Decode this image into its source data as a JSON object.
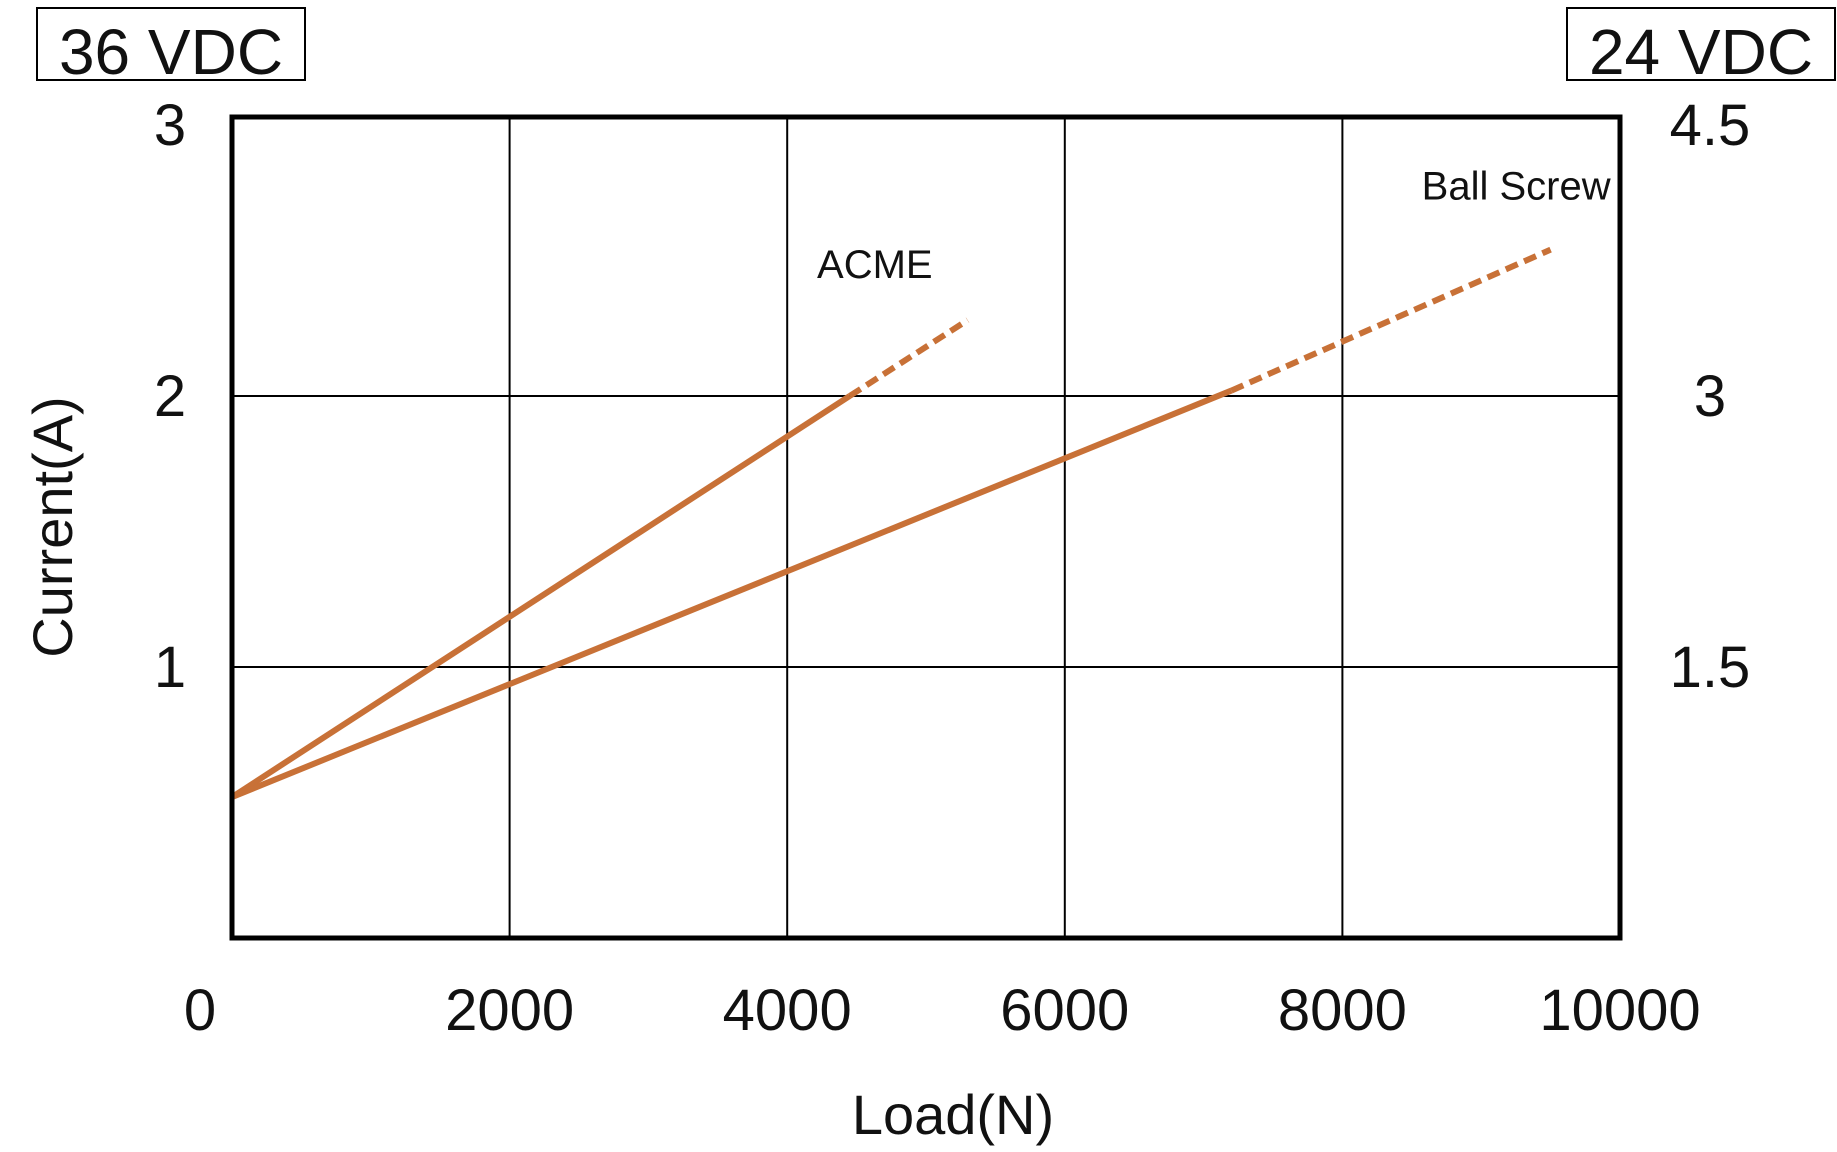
{
  "chart_data": {
    "type": "line",
    "xlabel": "Load(N)",
    "ylabel": "Current(A)",
    "left_box_label": "36 VDC",
    "right_box_label": "24 VDC",
    "xlim": [
      0,
      10000
    ],
    "ylim": [
      0,
      3
    ],
    "y2lim": [
      0,
      4.5
    ],
    "x_ticks": [
      0,
      2000,
      4000,
      6000,
      8000,
      10000
    ],
    "x_tick_labels": [
      "0",
      "2000",
      "4000",
      "6000",
      "8000",
      "10000"
    ],
    "y_ticks": [
      1,
      2,
      3
    ],
    "y_tick_labels": [
      "1",
      "2",
      "3"
    ],
    "y2_ticks": [
      1.5,
      3,
      4.5
    ],
    "y2_tick_labels": [
      "1.5",
      "3",
      "4.5"
    ],
    "grid": true,
    "line_color": "#c87137",
    "series": [
      {
        "name": "ACME",
        "solid": {
          "x": [
            0,
            4450
          ],
          "y": [
            0.52,
            2.0
          ]
        },
        "dashed": {
          "x": [
            4450,
            5300
          ],
          "y": [
            2.0,
            2.28
          ]
        }
      },
      {
        "name": "Ball Screw",
        "solid": {
          "x": [
            0,
            7200
          ],
          "y": [
            0.52,
            2.02
          ]
        },
        "dashed": {
          "x": [
            7200,
            9500
          ],
          "y": [
            2.02,
            2.54
          ]
        }
      }
    ]
  }
}
